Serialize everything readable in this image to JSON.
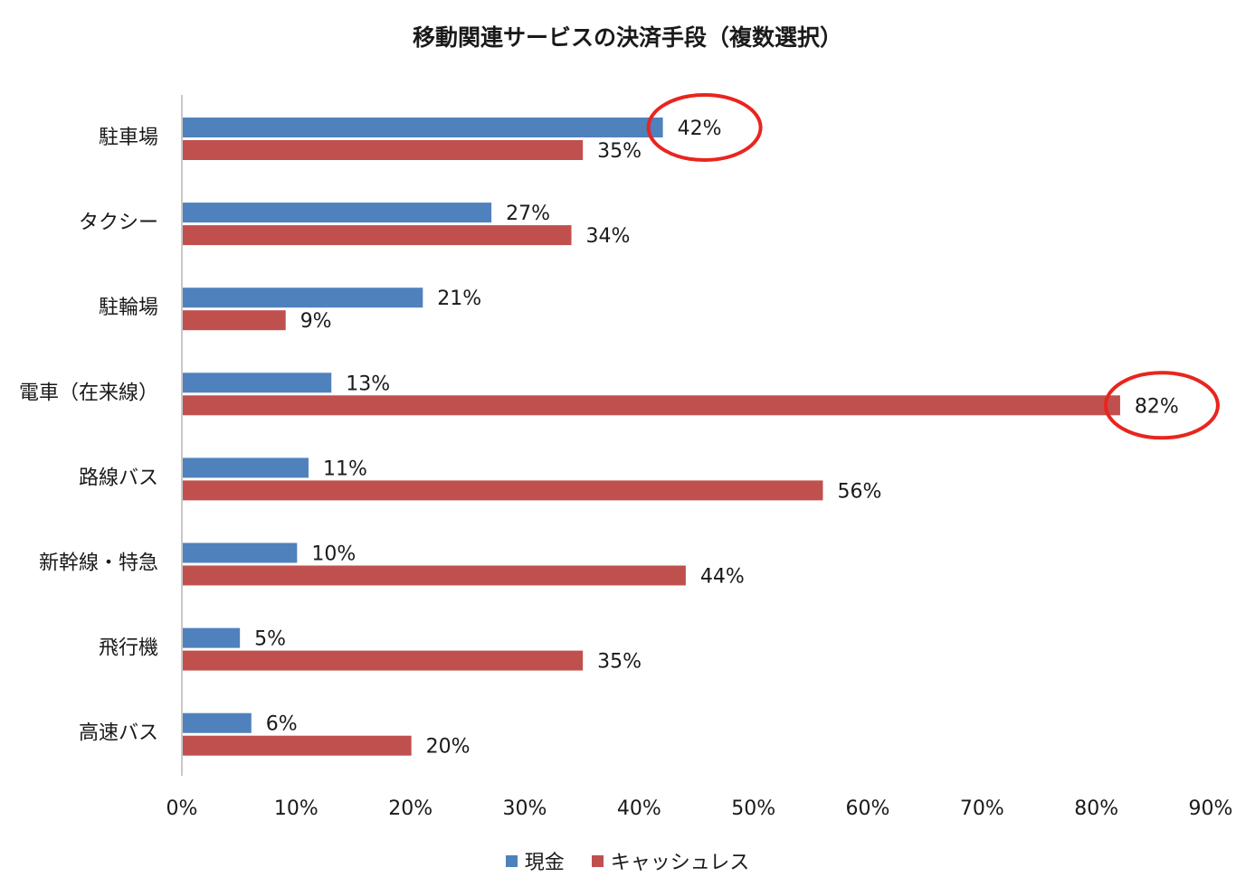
{
  "chart_data": {
    "type": "bar",
    "orientation": "horizontal",
    "title": "移動関連サービスの決済手段（複数選択）",
    "categories": [
      "駐車場",
      "タクシー",
      "駐輪場",
      "電車（在来線）",
      "路線バス",
      "新幹線・特急",
      "飛行機",
      "高速バス"
    ],
    "series": [
      {
        "name": "現金",
        "color": "#4f81bd",
        "values": [
          42,
          27,
          21,
          13,
          11,
          10,
          5,
          6
        ],
        "labels": [
          "42%",
          "27%",
          "21%",
          "13%",
          "11%",
          "10%",
          "5%",
          "6%"
        ]
      },
      {
        "name": "キャッシュレス",
        "color": "#c0504d",
        "values": [
          35,
          34,
          9,
          82,
          56,
          44,
          35,
          20
        ],
        "labels": [
          "35%",
          "34%",
          "9%",
          "82%",
          "56%",
          "44%",
          "35%",
          "20%"
        ]
      }
    ],
    "xlim": [
      0,
      90
    ],
    "x_ticks": [
      "0%",
      "10%",
      "20%",
      "30%",
      "40%",
      "50%",
      "60%",
      "70%",
      "80%",
      "90%"
    ],
    "grid": false,
    "legend_position": "bottom",
    "highlight_circles": [
      {
        "series": 0,
        "category": 0,
        "color": "#e8251f"
      },
      {
        "series": 1,
        "category": 3,
        "color": "#e8251f"
      }
    ]
  }
}
